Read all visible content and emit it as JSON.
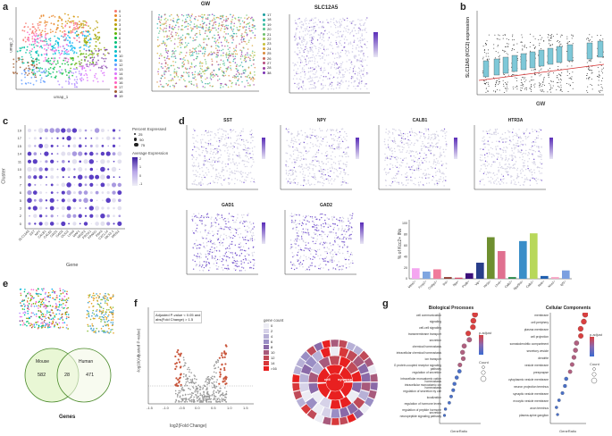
{
  "panels": {
    "a": {
      "label": "a",
      "umap_axis": {
        "x": "umap_1",
        "y": "umap_2"
      },
      "cluster_legend": [
        "0",
        "1",
        "2",
        "3",
        "4",
        "5",
        "6",
        "7",
        "8",
        "9",
        "10",
        "11",
        "12",
        "13",
        "14",
        "15",
        "16",
        "17",
        "18",
        "19"
      ],
      "gw_title": "GW",
      "gw_legend": [
        "17",
        "18",
        "19",
        "20",
        "21",
        "22",
        "23",
        "24",
        "25",
        "26",
        "27",
        "28",
        "38"
      ],
      "gene_title": "SLC12A5"
    },
    "b": {
      "label": "b",
      "ylabel": "SLC12A5 (KCC2) expression",
      "xlabel": "GW"
    },
    "c": {
      "label": "c",
      "ylabel": "Cluster",
      "xlabel": "Gene",
      "clusters": [
        "19",
        "17",
        "15",
        "14",
        "11",
        "10",
        "9",
        "7",
        "6",
        "5",
        "3",
        "2",
        "0"
      ],
      "genes": [
        "SLC12A5",
        "SST",
        "NPY",
        "CALB1",
        "CALB2",
        "GAD1",
        "GAD2",
        "OLIG2",
        "LHX6",
        "MAF1",
        "NR2F2",
        "PROX1",
        "PPARG",
        "PAX6",
        "CXCL14",
        "NKX2-1",
        "MEIS2"
      ],
      "legend_percent_title": "Percent Expressed",
      "legend_percent": [
        "25",
        "50",
        "75"
      ],
      "legend_avg_title": "Average Expression",
      "legend_avg": [
        "2",
        "1",
        "0",
        "-1"
      ]
    },
    "d": {
      "label": "d",
      "features": [
        "SST",
        "NPY",
        "CALB1",
        "HTR3A",
        "GAD1",
        "GAD2"
      ],
      "bar_ylabel": "% of Kcc2+ INs"
    },
    "e": {
      "label": "e",
      "venn": {
        "left_label": "Mouse",
        "right_label": "Human",
        "left_only": "582",
        "overlap": "28",
        "right_only": "471",
        "title": "Genes"
      }
    },
    "f": {
      "label": "f",
      "legend_lines": [
        "Adjusted P-value < 0.05 and",
        "abs(Fold Change) > 1.5"
      ],
      "xlabel": "log2(Fold Change)",
      "ylabel": "-log10(Adjusted P-value)",
      "xticks": [
        "-1.5",
        "-1.0",
        "-0.5",
        "0.0",
        "0.5",
        "1.0",
        "1.5"
      ],
      "count_title": "gene count",
      "count_levels": [
        "0",
        "2",
        "4",
        "6",
        "8",
        "10",
        "12",
        "14",
        ">16"
      ],
      "sunburst_center_words": [
        "cell",
        "synapse"
      ]
    },
    "g": {
      "label": "g",
      "bp_title": "Biological Processes",
      "bp_terms": [
        "cell communication",
        "signaling",
        "cell-cell signaling",
        "transmembrane transport",
        "secretion",
        "chemical homeostasis",
        "intracellular chemical homeostasis",
        "ion transport",
        "G protein-coupled receptor signaling pathway",
        "regulation of secretion",
        "intracellular monoatomic cation homeostasis",
        "intracellular monoatomic ion homeostasis",
        "regulation of secretion by cell",
        "localization",
        "regulation of hormone levels",
        "regulation of peptide hormone secretion",
        "neuropeptide signaling pathway"
      ],
      "cc_title": "Cellular Components",
      "cc_terms": [
        "membrane",
        "cell periphery",
        "plasma membrane",
        "cell projection",
        "somatodendritic compartment",
        "secretory vesicle",
        "dendrite",
        "vesicle membrane",
        "presynapse",
        "cytoplasmic vesicle membrane",
        "neuron projection terminus",
        "synaptic vesicle membrane",
        "exocytic vesicle membrane",
        "axon terminus",
        "plasma-spine ganglion"
      ],
      "xlabel": "GeneRatio",
      "padj_title": "p.adjust",
      "count_title": "Count"
    }
  },
  "chart_data": [
    {
      "type": "bar",
      "title": "",
      "ylabel": "% of Kcc2+ INs",
      "categories": [
        "Meis2+",
        "Foxp2+",
        "Crabp1+",
        "Sst+",
        "Npy+",
        "Pvalb+",
        "Vip+",
        "Htr3a+",
        "Lhx6+",
        "Calb2+",
        "Npy/Sst+",
        "Calb1+",
        "Reln+",
        "Nos1+",
        "Igf1+"
      ],
      "values": [
        19,
        13,
        17,
        3,
        2,
        10,
        29,
        75,
        50,
        3,
        68,
        82,
        5,
        3,
        15
      ],
      "ylim": [
        0,
        100
      ],
      "colors": [
        "#f4a6f0",
        "#7fa6e0",
        "#f07b9b",
        "#8b3a2e",
        "#d84a6a",
        "#3b0f7a",
        "#283e8a",
        "#6e8f2f",
        "#e07090",
        "#2a8a4a",
        "#3a8ec8",
        "#b8d85a",
        "#2060b0",
        "#f7a4c4",
        "#7b9fe0"
      ]
    },
    {
      "type": "scatter",
      "title": "SLC12A5 (KCC2) expression vs GW",
      "xlabel": "GW",
      "ylabel": "SLC12A5 (KCC2) expression",
      "x": [
        17,
        18,
        19,
        20,
        21,
        22,
        23,
        24,
        25,
        26,
        28,
        38
      ],
      "y": [
        0.2,
        0.4,
        0.3,
        0.5,
        0.4,
        0.6,
        0.5,
        0.7,
        0.5,
        0.6,
        0.8,
        1.0
      ]
    }
  ]
}
